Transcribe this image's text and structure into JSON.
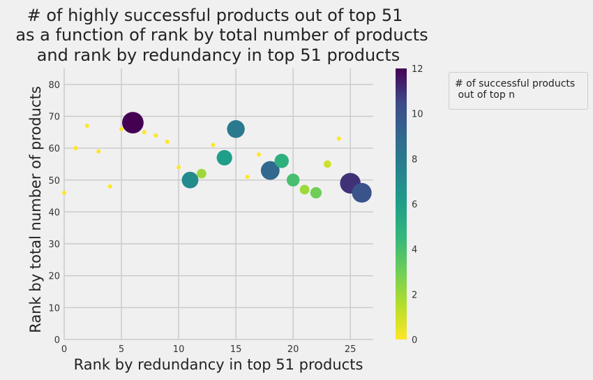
{
  "chart_data": {
    "type": "scatter",
    "title_lines": [
      "# of highly successful products out of top 51",
      "as a function of rank by total number of products",
      "and rank by redundancy in top 51 products"
    ],
    "xlabel": "Rank by redundancy in top 51 products",
    "ylabel": "Rank by total number of products",
    "xlim": [
      0,
      27
    ],
    "ylim": [
      0,
      85
    ],
    "xticks": [
      0,
      5,
      10,
      15,
      20,
      25
    ],
    "yticks": [
      0,
      10,
      20,
      30,
      40,
      50,
      60,
      70,
      80
    ],
    "grid": true,
    "colorbar": {
      "cmap": "viridis_r",
      "range": [
        0,
        12
      ],
      "ticks": [
        0,
        2,
        4,
        6,
        8,
        10,
        12
      ]
    },
    "legend": {
      "title": "# of successful products\n out of top n",
      "placement": "outside-right"
    },
    "points": [
      {
        "x": 0,
        "y": 46,
        "c": 0
      },
      {
        "x": 1,
        "y": 60,
        "c": 0
      },
      {
        "x": 2,
        "y": 67,
        "c": 0
      },
      {
        "x": 3,
        "y": 59,
        "c": 0
      },
      {
        "x": 4,
        "y": 48,
        "c": 0
      },
      {
        "x": 5,
        "y": 66,
        "c": 0
      },
      {
        "x": 6,
        "y": 68,
        "c": 12
      },
      {
        "x": 7,
        "y": 65,
        "c": 0
      },
      {
        "x": 8,
        "y": 64,
        "c": 0
      },
      {
        "x": 9,
        "y": 62,
        "c": 0
      },
      {
        "x": 10,
        "y": 54,
        "c": 0
      },
      {
        "x": 11,
        "y": 50,
        "c": 7
      },
      {
        "x": 12,
        "y": 52,
        "c": 2
      },
      {
        "x": 13,
        "y": 61,
        "c": 0
      },
      {
        "x": 14,
        "y": 57,
        "c": 6
      },
      {
        "x": 15,
        "y": 66,
        "c": 8
      },
      {
        "x": 16,
        "y": 51,
        "c": 0
      },
      {
        "x": 17,
        "y": 58,
        "c": 0
      },
      {
        "x": 18,
        "y": 53,
        "c": 9
      },
      {
        "x": 19,
        "y": 56,
        "c": 5
      },
      {
        "x": 20,
        "y": 50,
        "c": 4
      },
      {
        "x": 21,
        "y": 47,
        "c": 2
      },
      {
        "x": 22,
        "y": 46,
        "c": 3
      },
      {
        "x": 23,
        "y": 55,
        "c": 1
      },
      {
        "x": 24,
        "y": 63,
        "c": 0
      },
      {
        "x": 25,
        "y": 49,
        "c": 11
      },
      {
        "x": 26,
        "y": 46,
        "c": 10
      }
    ]
  }
}
